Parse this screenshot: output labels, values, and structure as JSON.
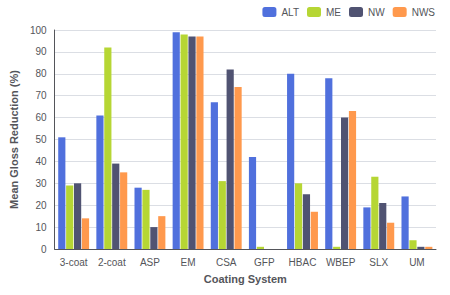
{
  "chart_data": {
    "type": "bar",
    "xlabel": "Coating System",
    "ylabel": "Mean Gloss Reduction (%)",
    "categories": [
      "3-coat",
      "2-coat",
      "ASP",
      "EM",
      "CSA",
      "GFP",
      "HBAC",
      "WBEP",
      "SLX",
      "UM"
    ],
    "series": [
      {
        "name": "ALT",
        "values": [
          51,
          61,
          28,
          99,
          67,
          42,
          80,
          78,
          19,
          24
        ]
      },
      {
        "name": "ME",
        "values": [
          29,
          92,
          27,
          98,
          31,
          1,
          30,
          1,
          33,
          4
        ]
      },
      {
        "name": "NW",
        "values": [
          30,
          39,
          10,
          97,
          82,
          0,
          25,
          60,
          21,
          1
        ]
      },
      {
        "name": "NWS",
        "values": [
          14,
          35,
          15,
          97,
          74,
          0,
          17,
          63,
          12,
          1
        ]
      }
    ],
    "ylim": [
      0,
      100
    ],
    "yticks": [
      0,
      10,
      20,
      30,
      40,
      50,
      60,
      70,
      80,
      90,
      100
    ],
    "grid": true,
    "legend": "upper right"
  }
}
